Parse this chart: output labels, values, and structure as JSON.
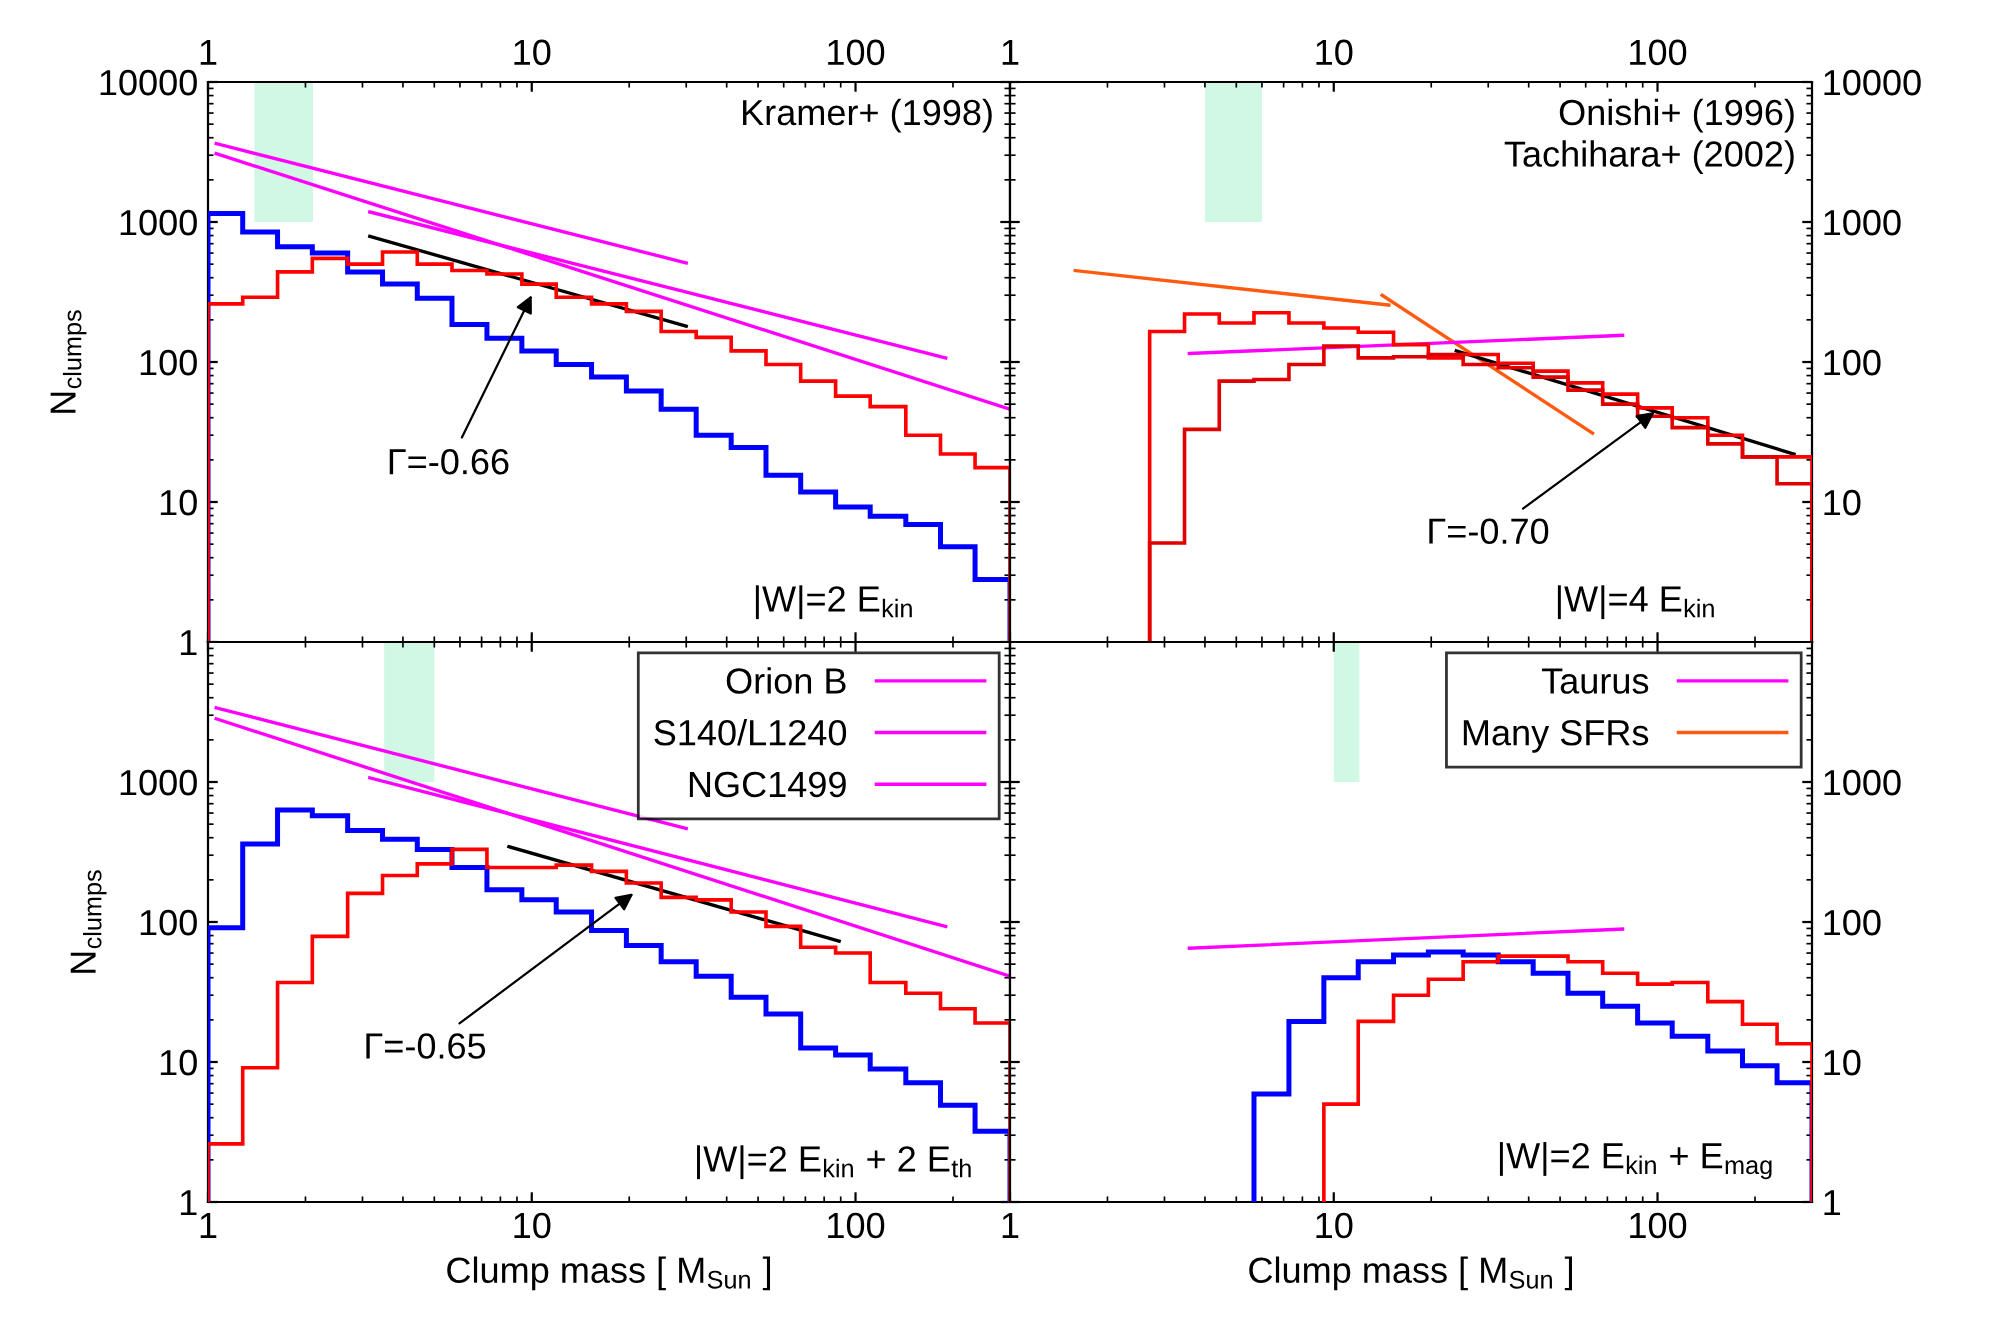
{
  "chart_data": [
    {
      "type": "histogram",
      "ylabel": "N$_{clumps}$",
      "xlim": [
        1,
        300
      ],
      "xticks": [
        1,
        10,
        100
      ],
      "ylim": [
        1,
        10000
      ],
      "yticks": [
        1,
        10,
        100,
        1000,
        10000
      ],
      "log": "xy",
      "grid": false,
      "bins": [
        1,
        1.28,
        1.64,
        2.1,
        2.7,
        3.46,
        4.43,
        5.67,
        7.27,
        9.32,
        11.9,
        15.3,
        19.6,
        25.1,
        32.2,
        41.3,
        52.9,
        67.7,
        86.8,
        111,
        143,
        183,
        234,
        300
      ],
      "series": [
        {
          "color": "#0000ff",
          "values": [
            1150,
            850,
            665,
            600,
            440,
            360,
            285,
            185,
            148,
            120,
            96,
            78,
            62,
            46,
            30,
            24.5,
            15.5,
            11.8,
            9.2,
            7.9,
            6.9,
            4.8,
            2.8
          ]
        },
        {
          "color": "#ff0000",
          "values": [
            260,
            290,
            440,
            550,
            500,
            610,
            500,
            450,
            425,
            360,
            290,
            260,
            230,
            165,
            150,
            120,
            96,
            73,
            57,
            48,
            30,
            22,
            17.6
          ]
        },
        {
          "type": "line",
          "color": "#ff00ff",
          "x": [
            1.06,
            300
          ],
          "values": [
            3080,
            46
          ]
        },
        {
          "type": "line",
          "color": "#ff00ff",
          "x": [
            3.16,
            190
          ],
          "values": [
            1180,
            107
          ]
        },
        {
          "type": "line",
          "color": "#ff00ff",
          "x": [
            1.06,
            30
          ],
          "values": [
            3630,
            510
          ]
        },
        {
          "type": "line",
          "color": "#000000",
          "x": [
            3.16,
            30
          ],
          "values": [
            790,
            180
          ]
        }
      ],
      "bands": [
        {
          "axis": "x",
          "from": 1.39,
          "to": 2.11,
          "color": "#d0f8e4"
        }
      ],
      "annotations": [
        {
          "text": "Γ=-0.66",
          "x": 10,
          "y": 300
        },
        "Kramer+ (1998)",
        "|W|=2 E$_{kin}$"
      ]
    },
    {
      "type": "histogram",
      "xlim": [
        1,
        300
      ],
      "xticks": [
        1,
        10,
        100
      ],
      "ylim": [
        1,
        10000
      ],
      "yticks": [
        10,
        100,
        1000,
        10000
      ],
      "log": "xy",
      "grid": false,
      "bins": [
        2.7,
        3.46,
        4.43,
        5.67,
        7.27,
        9.32,
        11.9,
        15.3,
        19.6,
        25.1,
        32.2,
        41.3,
        52.9,
        67.7,
        86.8,
        111,
        143,
        183,
        234,
        300
      ],
      "series": [
        {
          "color": "#ff0000",
          "values": [
            165,
            220,
            190,
            225,
            190,
            175,
            163,
            133,
            107,
            113,
            98,
            86,
            71,
            59,
            47,
            40,
            30,
            21,
            21
          ]
        },
        {
          "color": "#e00000",
          "values": [
            5.1,
            33,
            73,
            75,
            96,
            130,
            107,
            109,
            113,
            96,
            91,
            78,
            63,
            50,
            41,
            34,
            26,
            21,
            13.5
          ]
        },
        {
          "type": "line",
          "color": "#ff5a10",
          "x": [
            1.59,
            14.8
          ],
          "values": [
            450,
            255
          ]
        },
        {
          "type": "line",
          "color": "#ff5a10",
          "x": [
            14.1,
            63
          ],
          "values": [
            300,
            31
          ]
        },
        {
          "type": "line",
          "color": "#ff00ff",
          "x": [
            3.58,
            78
          ],
          "values": [
            115,
            155
          ]
        },
        {
          "type": "line",
          "color": "#000000",
          "x": [
            23.9,
            264
          ],
          "values": [
            120,
            22
          ]
        }
      ],
      "bands": [
        {
          "axis": "x",
          "from": 4.0,
          "to": 6.0,
          "color": "#d0f8e4"
        }
      ],
      "annotations": [
        {
          "text": "Γ=-0.70",
          "x": 98,
          "y": 44
        },
        "Onishi+ (1996)\nTachihara+ (2002)",
        "|W|=4 E$_{kin}$"
      ]
    },
    {
      "type": "histogram",
      "xlabel": "Clump mass [ M$_{Sun}$ ]",
      "ylabel": "N$_{clumps}$",
      "xlim": [
        1,
        300
      ],
      "xticks": [
        1,
        10,
        100
      ],
      "ylim": [
        1,
        10000
      ],
      "yticks": [
        1,
        10,
        100,
        1000
      ],
      "log": "xy",
      "grid": false,
      "legend": "top right",
      "bins": [
        1,
        1.28,
        1.64,
        2.1,
        2.7,
        3.46,
        4.43,
        5.67,
        7.27,
        9.32,
        11.9,
        15.3,
        19.6,
        25.1,
        32.2,
        41.3,
        52.9,
        67.7,
        86.8,
        111,
        143,
        183,
        234,
        300
      ],
      "series": [
        {
          "color": "#0000ff",
          "values": [
            91,
            360,
            630,
            575,
            450,
            390,
            330,
            245,
            170,
            144,
            118,
            87,
            68,
            52,
            41,
            29,
            22,
            12.6,
            11.2,
            8.9,
            7.1,
            4.9,
            3.2
          ]
        },
        {
          "color": "#ff0000",
          "values": [
            2.6,
            9.1,
            37,
            79,
            160,
            215,
            260,
            330,
            245,
            245,
            255,
            230,
            190,
            150,
            144,
            118,
            93,
            66,
            60,
            37,
            31,
            24,
            19
          ]
        },
        {
          "type": "line",
          "name": "Orion B",
          "color": "#ff00ff",
          "x": [
            1.06,
            300
          ],
          "values": [
            2830,
            41
          ]
        },
        {
          "type": "line",
          "name": "S140/L1240",
          "color": "#ff00ff",
          "x": [
            3.16,
            190
          ],
          "values": [
            1070,
            93
          ]
        },
        {
          "type": "line",
          "name": "NGC1499",
          "color": "#ff00ff",
          "x": [
            1.06,
            30
          ],
          "values": [
            3390,
            465
          ]
        },
        {
          "type": "line",
          "color": "#000000",
          "x": [
            8.5,
            89
          ],
          "values": [
            345,
            73
          ]
        }
      ],
      "bands": [
        {
          "axis": "x",
          "from": 3.5,
          "to": 5.0,
          "color": "#d0f8e4"
        }
      ],
      "annotations": [
        {
          "text": "Γ=-0.65",
          "x": 20.6,
          "y": 160
        },
        "|W|=2 E$_{kin}$ + 2 E$_{th}$"
      ]
    },
    {
      "type": "histogram",
      "xlabel": "Clump mass [ M$_{Sun}$ ]",
      "xlim": [
        1,
        300
      ],
      "xticks": [
        1,
        10,
        100
      ],
      "ylim": [
        1,
        10000
      ],
      "yticks": [
        1,
        10,
        100,
        1000
      ],
      "log": "xy",
      "grid": false,
      "legend": "top right",
      "series": [
        {
          "color": "#0000ff",
          "bins": [
            5.67,
            7.27,
            9.32,
            11.9,
            15.3,
            19.6,
            25.1,
            32.2,
            41.3,
            52.9,
            67.7,
            86.8,
            111,
            143,
            183,
            234,
            300
          ],
          "values": [
            5.9,
            19.5,
            40,
            52,
            58,
            61,
            58,
            52,
            43,
            31,
            25,
            19,
            15.3,
            12,
            9.4,
            7.1
          ]
        },
        {
          "color": "#ff0000",
          "bins": [
            9.32,
            11.9,
            15.3,
            19.6,
            25.1,
            32.2,
            41.3,
            52.9,
            67.7,
            86.8,
            111,
            143,
            183,
            234,
            300
          ],
          "values": [
            5.0,
            19.5,
            30,
            39,
            52,
            57,
            57,
            52,
            43,
            36,
            37,
            27,
            18.6,
            13.5
          ]
        },
        {
          "type": "line",
          "name": "Taurus",
          "color": "#ff00ff",
          "x": [
            3.58,
            78
          ],
          "values": [
            65,
            89
          ]
        },
        {
          "type": "line",
          "name": "Many SFRs",
          "color": "#ff5a10"
        }
      ],
      "bands": [
        {
          "axis": "x",
          "from": 10,
          "to": 12,
          "color": "#d0f8e4"
        }
      ],
      "annotations": [
        "|W|=2 E$_{kin}$ + E$_{mag}$"
      ]
    }
  ]
}
